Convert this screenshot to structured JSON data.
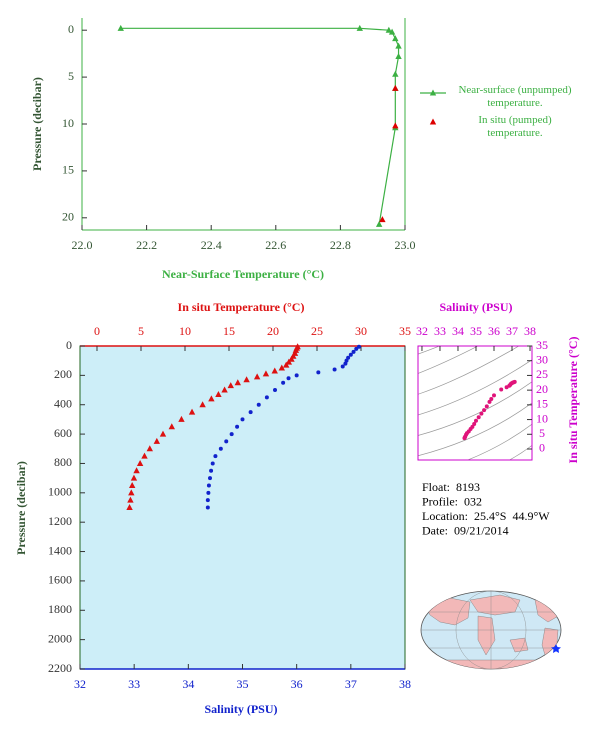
{
  "chart_data": [
    {
      "type": "line",
      "x_label": "Near-Surface Temperature (°C)",
      "y_label": "Pressure (decibar)",
      "xlim": [
        22,
        23
      ],
      "xticks": [
        {
          "value": 22,
          "label": "22.0"
        },
        22.2,
        22.4,
        22.6,
        22.8,
        {
          "value": 23,
          "label": "23.0"
        }
      ],
      "ylim": [
        21.3,
        -1.3
      ],
      "yticks": [
        0,
        5,
        10,
        15,
        20
      ],
      "series": [
        {
          "name": "Near-surface (unpumped) temperature.",
          "color": "#3cb043",
          "marker": "triangle",
          "line": true,
          "x": [
            22.12,
            22.86,
            22.95,
            22.96,
            22.97,
            22.98,
            22.98,
            22.97,
            22.97,
            22.97,
            22.92
          ],
          "values": [
            -0.2,
            -0.2,
            0,
            0.2,
            0.9,
            1.7,
            2.8,
            4.7,
            6.2,
            10.4,
            20.7
          ]
        },
        {
          "name": "In situ (pumped) temperature.",
          "color": "#dd0000",
          "marker": "triangle",
          "line": false,
          "x": [
            22.97,
            22.97,
            22.93
          ],
          "values": [
            6.2,
            10.2,
            20.2
          ]
        }
      ]
    },
    {
      "type": "scatter",
      "x_label": "In situ Temperature (°C)",
      "x2_label": "Salinity (PSU)",
      "y_label": "Pressure (decibar)",
      "xlim": [
        -1.93,
        35
      ],
      "xticks": [
        0,
        5,
        10,
        15,
        20,
        25,
        30,
        35
      ],
      "x2lim": [
        32,
        38
      ],
      "x2ticks": [
        32,
        33,
        34,
        35,
        36,
        37,
        38
      ],
      "ylim": [
        2200,
        0
      ],
      "yticks": [
        0,
        200,
        400,
        600,
        800,
        1000,
        1200,
        1400,
        1600,
        1800,
        2000,
        2200
      ],
      "background": "#cdeef8",
      "series": [
        {
          "color": "#dd1111",
          "marker": "triangle",
          "x": [
            22.8,
            22.7,
            22.6,
            22.5,
            22.3,
            22.1,
            21.8,
            21.5,
            21.0,
            20.2,
            19.2,
            18.2,
            17.0,
            16.0,
            15.2,
            14.5,
            13.8,
            13.0,
            12.0,
            10.8,
            9.6,
            8.5,
            7.5,
            6.8,
            6.0,
            5.4,
            4.9,
            4.5,
            4.2,
            4.0,
            3.9,
            3.8,
            3.7
          ],
          "values": [
            5,
            15,
            30,
            50,
            70,
            90,
            110,
            130,
            150,
            170,
            190,
            210,
            230,
            250,
            270,
            300,
            330,
            360,
            400,
            450,
            500,
            550,
            600,
            650,
            700,
            750,
            800,
            850,
            900,
            950,
            1000,
            1050,
            1100
          ]
        },
        {
          "color": "#1122cc",
          "marker": "circle",
          "axis": "x2",
          "x": [
            37.15,
            37.1,
            37.05,
            37.0,
            36.95,
            36.92,
            36.9,
            36.85,
            36.7,
            36.4,
            36.0,
            35.85,
            35.75,
            35.6,
            35.45,
            35.3,
            35.15,
            35.0,
            34.9,
            34.8,
            34.7,
            34.6,
            34.5,
            34.45,
            34.42,
            34.4,
            34.38,
            34.37,
            34.36,
            34.36
          ],
          "values": [
            5,
            20,
            40,
            60,
            80,
            100,
            120,
            140,
            160,
            180,
            200,
            220,
            250,
            300,
            350,
            400,
            450,
            500,
            550,
            600,
            650,
            700,
            750,
            800,
            850,
            900,
            950,
            1000,
            1050,
            1100
          ]
        }
      ]
    },
    {
      "type": "scatter",
      "x_label": "Salinity (PSU)",
      "y_label": "In situ Temperature (°C)",
      "xlim": [
        31.78,
        38.11
      ],
      "xticks": [
        32,
        33,
        34,
        35,
        36,
        37,
        38
      ],
      "ylim": [
        -3.74,
        35
      ],
      "yticks": [
        0,
        5,
        10,
        15,
        20,
        25,
        30,
        35
      ],
      "axis_color": "#cc00cc",
      "series": [
        {
          "color": "#e0147a",
          "marker": "circle",
          "x": [
            34.36,
            34.38,
            34.4,
            34.45,
            34.5,
            34.6,
            34.7,
            34.8,
            34.9,
            35.0,
            35.15,
            35.3,
            35.45,
            35.6,
            35.75,
            35.85,
            36.0,
            36.4,
            36.7,
            36.85,
            36.9,
            36.95,
            37.0,
            37.05,
            37.1,
            37.15
          ],
          "values": [
            3.7,
            3.9,
            4.2,
            4.9,
            5.4,
            6.0,
            6.8,
            7.5,
            8.5,
            9.6,
            10.8,
            12.0,
            13.2,
            14.5,
            16.0,
            17.0,
            18.2,
            20.2,
            21.0,
            21.5,
            21.8,
            22.2,
            22.4,
            22.6,
            22.7,
            22.8
          ]
        }
      ]
    }
  ],
  "profile_info": [
    "Float:  8193",
    "Profile:  032",
    "Location:  25.4°S  44.9°W",
    "Date:  09/21/2014"
  ]
}
